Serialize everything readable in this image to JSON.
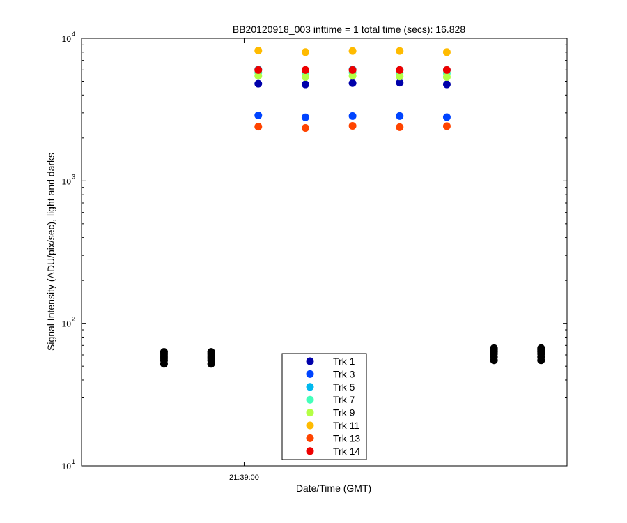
{
  "chart_data": {
    "type": "scatter",
    "title": "BB20120918_003 inttime = 1 total time (secs): 16.828",
    "xlabel": "Date/Time (GMT)",
    "ylabel": "Signal Intensity (ADU/pix/sec), light and darks",
    "y_scale": "log",
    "ylim": [
      10,
      10000
    ],
    "xlim": [
      "21:38:56.55",
      "21:39:06.85"
    ],
    "x_ticks": [
      {
        "value": "21:39:00",
        "label": "21:39:00"
      }
    ],
    "y_ticks": [
      {
        "value": 10,
        "base": "10",
        "exponent": "1"
      },
      {
        "value": 100,
        "base": "10",
        "exponent": "2"
      },
      {
        "value": 1000,
        "base": "10",
        "exponent": "3"
      },
      {
        "value": 10000,
        "base": "10",
        "exponent": "4"
      }
    ],
    "grid": false,
    "legend_position": "bottom-center",
    "light_x": [
      "21:39:00.3",
      "21:39:01.3",
      "21:39:02.3",
      "21:39:03.3",
      "21:39:04.3"
    ],
    "series": [
      {
        "name": "Trk 1",
        "color": "#0000aa",
        "values": [
          4800,
          4750,
          4850,
          4880,
          4750
        ]
      },
      {
        "name": "Trk 3",
        "color": "#0044ff",
        "values": [
          2880,
          2790,
          2850,
          2850,
          2800
        ]
      },
      {
        "name": "Trk 5",
        "color": "#00b8ee",
        "values": [
          6050,
          5980,
          6050,
          6000,
          6000
        ]
      },
      {
        "name": "Trk 7",
        "color": "#44ffbb",
        "values": [
          5750,
          5700,
          5750,
          5720,
          5700
        ]
      },
      {
        "name": "Trk 9",
        "color": "#b4ff44",
        "values": [
          5450,
          5350,
          5450,
          5400,
          5350
        ]
      },
      {
        "name": "Trk 11",
        "color": "#ffbb00",
        "values": [
          8200,
          8000,
          8150,
          8150,
          8000
        ]
      },
      {
        "name": "Trk 13",
        "color": "#ff4400",
        "values": [
          2400,
          2350,
          2430,
          2380,
          2420
        ]
      },
      {
        "name": "Trk 14",
        "color": "#ee0000",
        "values": [
          6000,
          6000,
          6000,
          6000,
          6000
        ]
      }
    ],
    "darks": {
      "color": "#000000",
      "x": [
        "21:38:58.3",
        "21:38:59.3",
        "21:39:05.3",
        "21:39:06.3"
      ],
      "values": [
        [
          52,
          55,
          57,
          59,
          61,
          63
        ],
        [
          52,
          55,
          57,
          59,
          61,
          63
        ],
        [
          55,
          58,
          61,
          63,
          65,
          67
        ],
        [
          55,
          58,
          61,
          63,
          65,
          67
        ]
      ]
    }
  }
}
